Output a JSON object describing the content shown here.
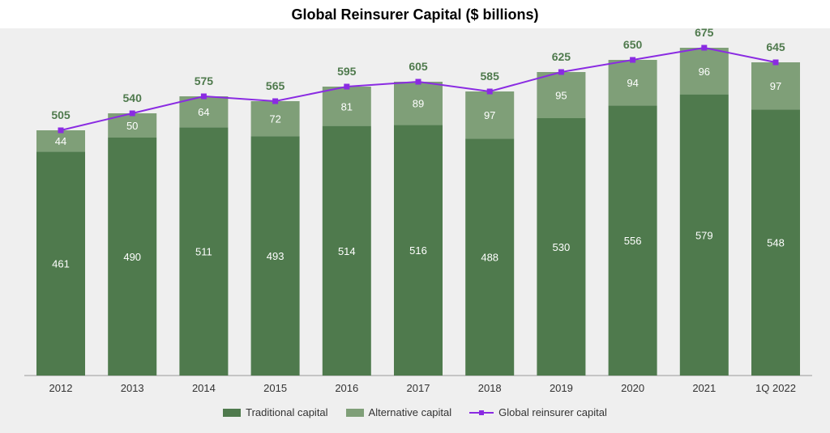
{
  "chart_data": {
    "type": "bar",
    "title": "Global Reinsurer Capital ($ billions)",
    "categories": [
      "2012",
      "2013",
      "2014",
      "2015",
      "2016",
      "2017",
      "2018",
      "2019",
      "2020",
      "2021",
      "1Q 2022"
    ],
    "series": [
      {
        "name": "Traditional capital",
        "type": "bar",
        "stacked": true,
        "color": "#4f7a4d",
        "values": [
          461,
          490,
          511,
          493,
          514,
          516,
          488,
          530,
          556,
          579,
          548
        ]
      },
      {
        "name": "Alternative capital",
        "type": "bar",
        "stacked": true,
        "color": "#7f9f78",
        "values": [
          44,
          50,
          64,
          72,
          81,
          89,
          97,
          95,
          94,
          96,
          97
        ]
      },
      {
        "name": "Global reinsurer capital",
        "type": "line",
        "color": "#8a2be2",
        "values": [
          505,
          540,
          575,
          565,
          595,
          605,
          585,
          625,
          650,
          675,
          645
        ]
      }
    ],
    "ylim": [
      0,
      800
    ],
    "grid": false,
    "legend_position": "bottom"
  }
}
